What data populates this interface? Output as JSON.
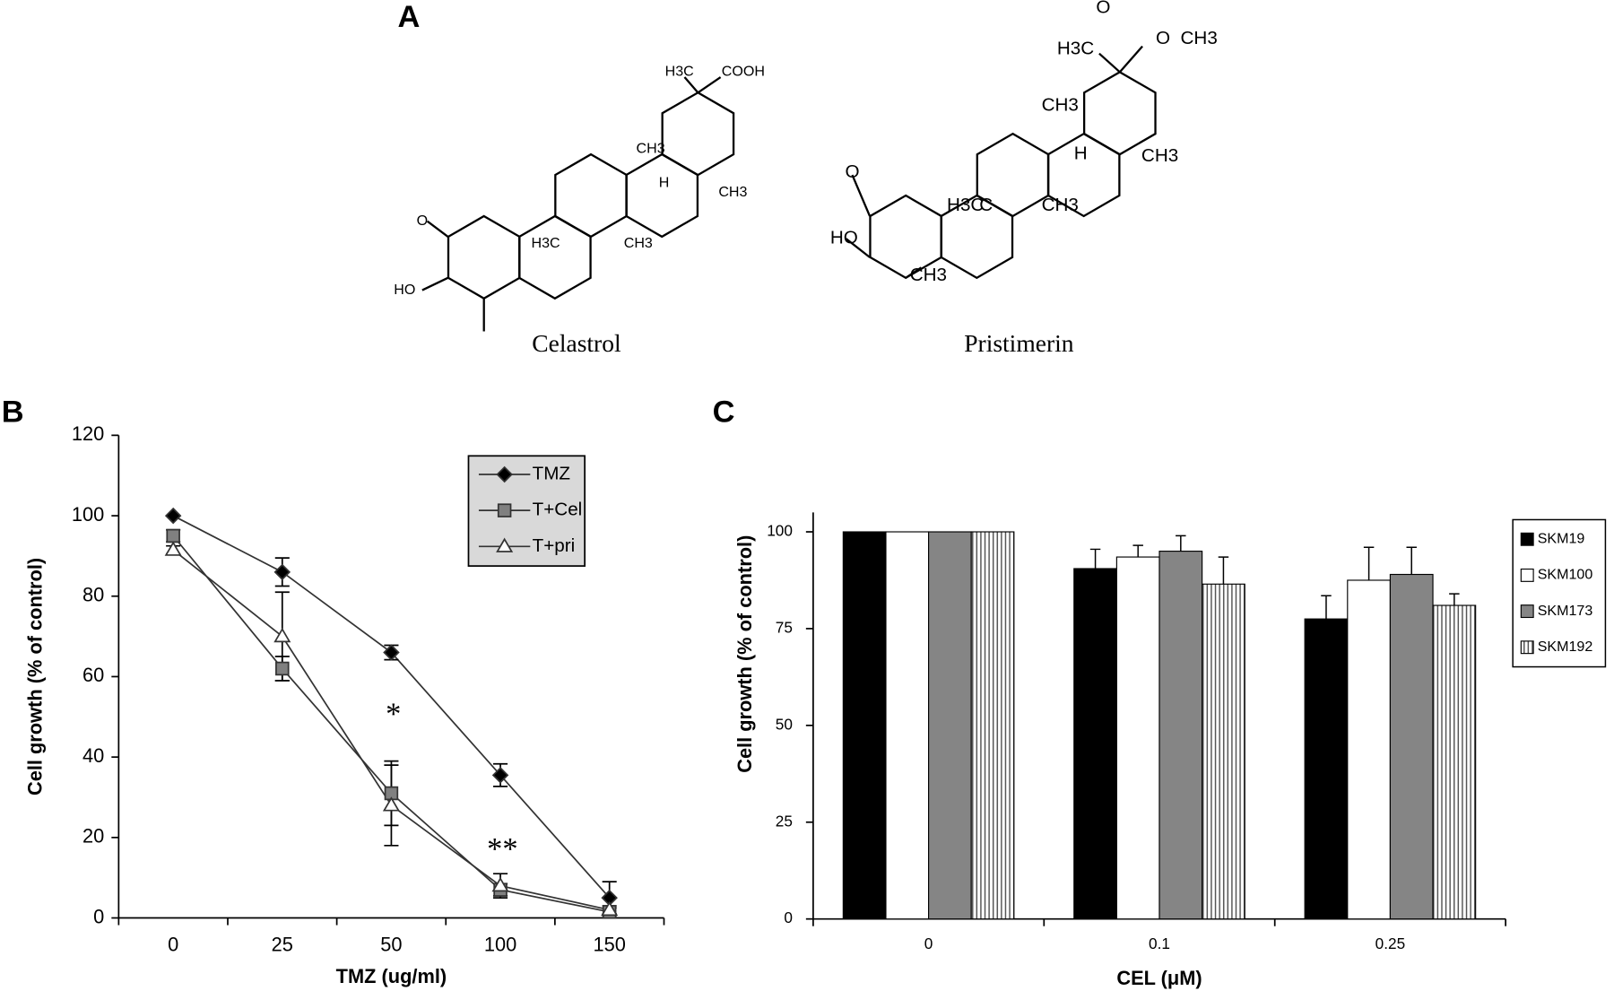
{
  "figure": {
    "panel_labels": [
      "A",
      "B",
      "C"
    ]
  },
  "structures": [
    {
      "name": "Celastrol",
      "atoms": [
        "H3C",
        "COOH",
        "CH3",
        "H",
        "CH3",
        "H3C",
        "CH3",
        "O",
        "HO"
      ]
    },
    {
      "name": "Pristimerin",
      "atoms": [
        "O",
        "O",
        "CH3",
        "H3C",
        "CH3",
        "H",
        "CH3",
        "H3C",
        "C",
        "CH3",
        "O",
        "HO",
        "CH3"
      ]
    }
  ],
  "chart_data": [
    {
      "type": "line",
      "x_label": "TMZ (ug/ml)",
      "y_label": "Cell growth (% of control)",
      "categories": [
        "0",
        "25",
        "50",
        "100",
        "150"
      ],
      "ylim": [
        0,
        120
      ],
      "yticks": [
        0,
        20,
        40,
        60,
        80,
        100,
        120
      ],
      "series": [
        {
          "name": "TMZ",
          "color": "#000000",
          "marker": "diamond",
          "values": [
            100,
            86,
            66,
            35.5,
            5
          ],
          "errors": [
            null,
            3.5,
            1.8,
            2.8,
            4
          ]
        },
        {
          "name": "T+Cel",
          "color": "#808080",
          "marker": "square",
          "values": [
            95,
            62,
            31,
            7,
            1.5
          ],
          "errors": [
            1.5,
            3,
            8,
            1.5,
            1
          ]
        },
        {
          "name": "T+pri",
          "color": "#ffffff",
          "marker": "triangle",
          "values": [
            91.5,
            70,
            28,
            8,
            2
          ],
          "errors": [
            1,
            11,
            10,
            3,
            1
          ]
        }
      ],
      "annotations": [
        "*",
        "**"
      ],
      "legend_background": "#d9d9d9"
    },
    {
      "type": "bar",
      "x_label": "CEL (μM)",
      "y_label": "Cell growth (% of control)",
      "categories": [
        "0",
        "0.1",
        "0.25"
      ],
      "ylim": [
        0,
        105
      ],
      "yticks": [
        0,
        25,
        50,
        75,
        100
      ],
      "series": [
        {
          "name": "SKM19",
          "color": "#000000",
          "values": [
            100,
            90.5,
            77.5
          ],
          "errors": [
            null,
            5,
            6
          ]
        },
        {
          "name": "SKM100",
          "color": "#ffffff",
          "values": [
            100,
            93.5,
            87.5
          ],
          "errors": [
            null,
            3,
            8.5
          ]
        },
        {
          "name": "SKM173",
          "color": "#858585",
          "values": [
            100,
            95,
            89
          ],
          "errors": [
            null,
            4,
            7
          ]
        },
        {
          "name": "SKM192",
          "color": "#ffffff",
          "pattern": "vertical-stripes",
          "values": [
            100,
            86.5,
            81
          ],
          "errors": [
            null,
            7,
            3
          ]
        }
      ]
    }
  ]
}
